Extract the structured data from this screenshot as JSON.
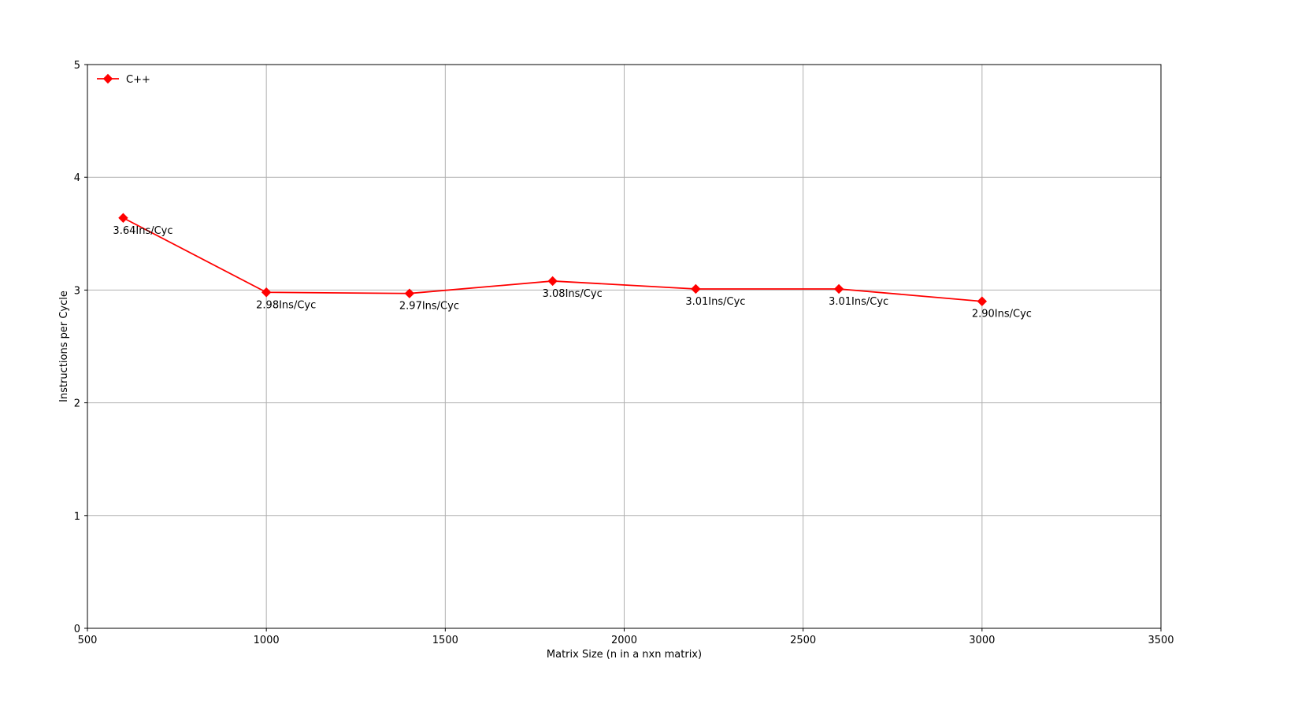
{
  "chart_data": {
    "type": "line",
    "title": "",
    "xlabel": "Matrix Size (n in a nxn matrix)",
    "ylabel": "Instructions per Cycle",
    "xlim": [
      500,
      3500
    ],
    "ylim": [
      0,
      5
    ],
    "xticks": [
      500,
      1000,
      1500,
      2000,
      2500,
      3000,
      3500
    ],
    "yticks": [
      0,
      1,
      2,
      3,
      4,
      5
    ],
    "grid": true,
    "legend_position": "top-left",
    "series": [
      {
        "name": "C++",
        "color": "#ff0000",
        "marker": "diamond",
        "x": [
          600,
          1000,
          1400,
          1800,
          2200,
          2600,
          3000
        ],
        "y": [
          3.64,
          2.98,
          2.97,
          3.08,
          3.01,
          3.01,
          2.9
        ],
        "labels": [
          "3.64Ins/Cyc",
          "2.98Ins/Cyc",
          "2.97Ins/Cyc",
          "3.08Ins/Cyc",
          "3.01Ins/Cyc",
          "3.01Ins/Cyc",
          "2.90Ins/Cyc"
        ]
      }
    ]
  }
}
